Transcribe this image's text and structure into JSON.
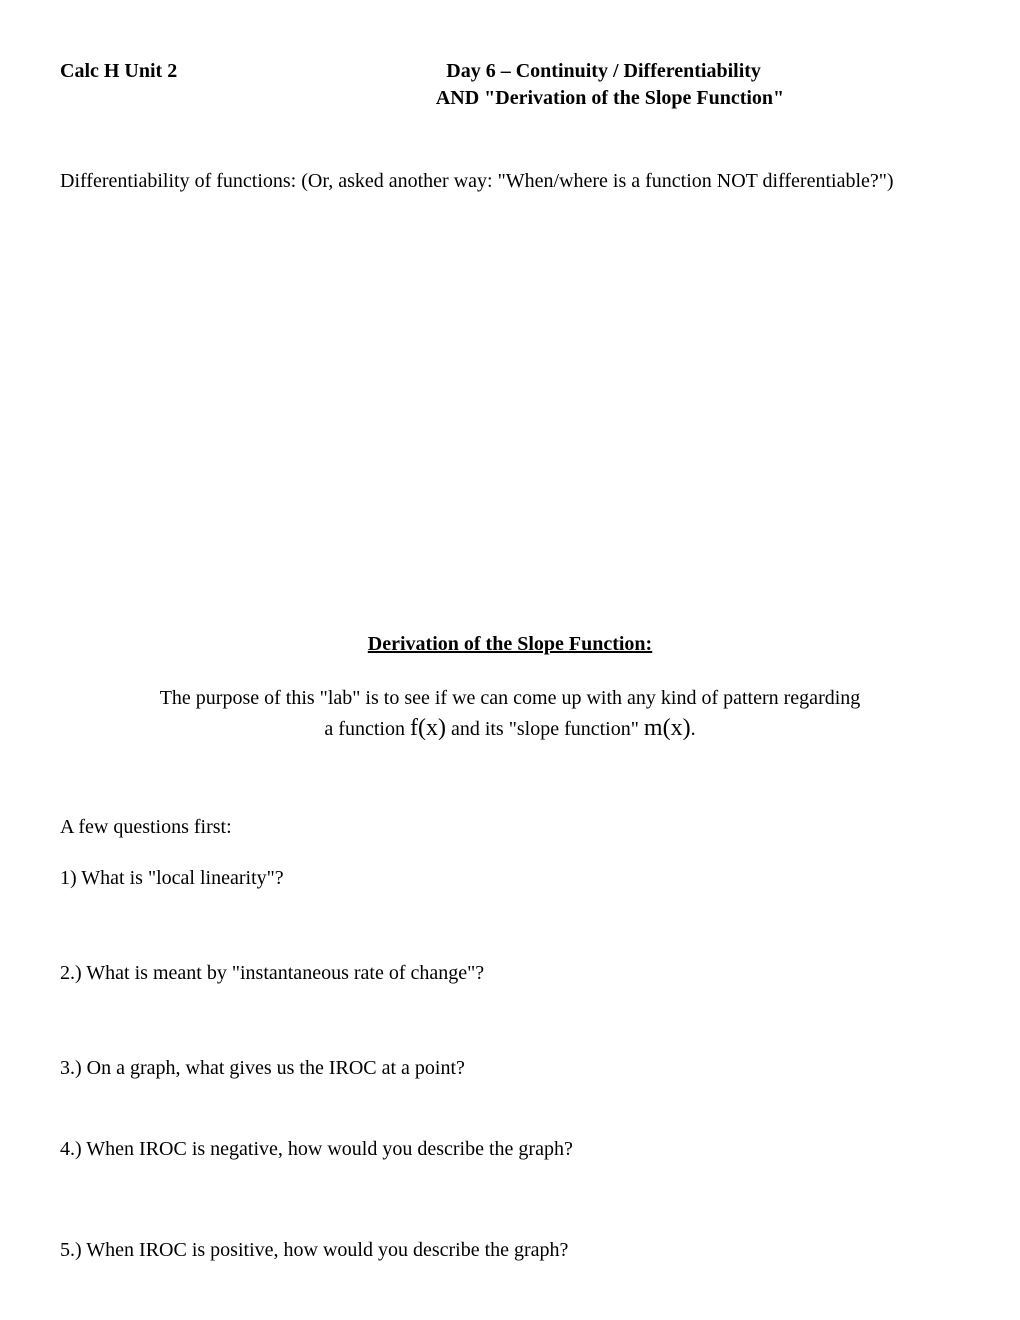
{
  "header": {
    "left": "Calc H Unit 2",
    "title": "Day 6 – Continuity / Differentiability",
    "subtitle": "AND  \"Derivation of the Slope Function\""
  },
  "intro": "Differentiability of functions:  (Or, asked another way:  \"When/where is a function NOT differentiable?\")",
  "section_title": "Derivation of the Slope Function:",
  "purpose": {
    "line1": "The purpose of this \"lab\" is to see if we can come up with any kind of pattern regarding",
    "line2_pre": "a function ",
    "fx": "f(x)",
    "line2_mid": " and its \"slope function\" ",
    "mx": "m(x)",
    "line2_post": "."
  },
  "questions_intro": "A few questions first:",
  "questions": {
    "q1": "1)   What is \"local linearity\"?",
    "q2": "2.) What is meant by \"instantaneous rate of change\"?",
    "q3": "3.) On a graph, what gives us the IROC at a point?",
    "q4": "4.) When IROC is negative, how would you describe the graph?",
    "q5": "5.) When IROC is positive, how would you describe the graph?"
  },
  "colors": {
    "background": "#ffffff",
    "text": "#000000"
  },
  "typography": {
    "body_font": "Times New Roman",
    "body_size": 20,
    "fx_size": 24
  }
}
